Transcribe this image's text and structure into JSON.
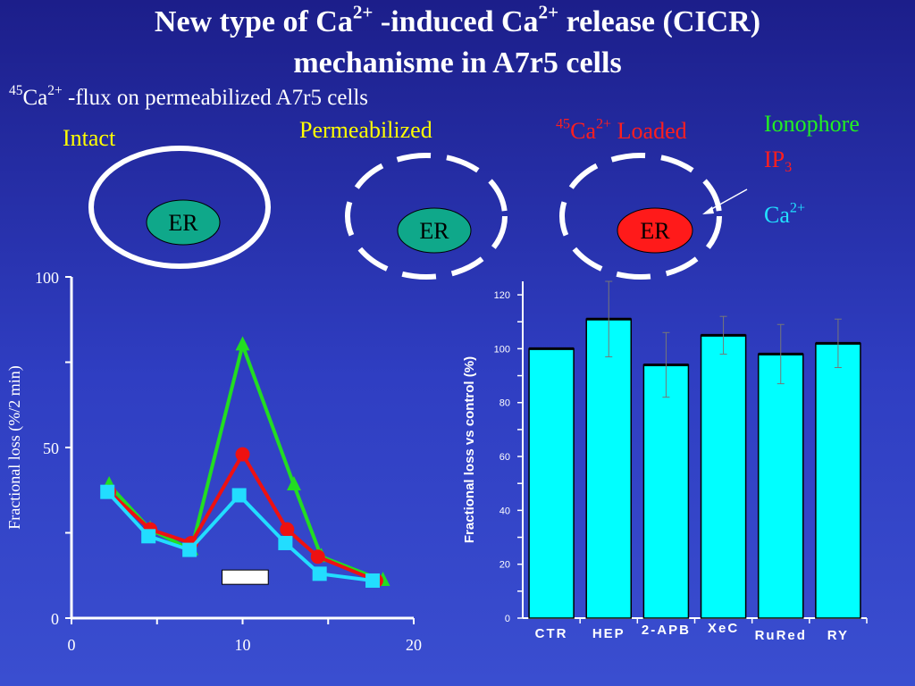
{
  "title": {
    "part1": "New type of Ca",
    "sup1": "2+",
    "part2": " -induced Ca",
    "sup2": "2+",
    "part3": "  release (CICR)",
    "line2": "mechanisme in A7r5 cells"
  },
  "subtitle": {
    "sup": "45",
    "ion": "Ca",
    "charge": "2+",
    "text": " -flux on permeabilized A7r5 cells"
  },
  "cells": {
    "intact_label": "Intact",
    "permeabilized_label": "Permeabilized",
    "loaded": {
      "sup": "45",
      "ion": "Ca",
      "charge": "2+",
      "text": " Loaded"
    },
    "er_label": "ER",
    "er_colors": {
      "normal": "#0fa88a",
      "loaded": "#ff1a1a"
    }
  },
  "stimuli": {
    "ionophore": "Ionophore",
    "ip3": {
      "base": "IP",
      "sub": "3"
    },
    "ca": {
      "base": "Ca",
      "sup": "2+"
    }
  },
  "chart_data": [
    {
      "type": "line",
      "ylabel": "Fractional loss (%/2 min)",
      "xlabel": "",
      "xlim": [
        0,
        20
      ],
      "ylim": [
        0,
        100
      ],
      "x_ticks": [
        "0",
        "10",
        "20"
      ],
      "y_ticks": [
        "0",
        "50",
        "100"
      ],
      "stimulus_bar": {
        "x_start": 8.8,
        "x_end": 11.5,
        "level": 12
      },
      "series": [
        {
          "color": "#22dd22",
          "marker": "triangle",
          "points": [
            [
              2.2,
              39
            ],
            [
              4.6,
              26
            ],
            [
              7,
              20
            ],
            [
              10,
              80
            ],
            [
              13,
              39
            ],
            [
              14.6,
              18
            ],
            [
              18.2,
              11
            ]
          ]
        },
        {
          "color": "#ee1111",
          "marker": "circle",
          "points": [
            [
              2.2,
              37
            ],
            [
              4.6,
              26
            ],
            [
              7,
              22
            ],
            [
              10,
              48
            ],
            [
              12.6,
              26
            ],
            [
              14.4,
              18
            ],
            [
              17.8,
              11
            ]
          ]
        },
        {
          "color": "#22ddff",
          "marker": "square",
          "points": [
            [
              2.1,
              37
            ],
            [
              4.5,
              24
            ],
            [
              6.9,
              20
            ],
            [
              9.8,
              36
            ],
            [
              12.5,
              22
            ],
            [
              14.5,
              13
            ],
            [
              17.6,
              11
            ]
          ]
        }
      ]
    },
    {
      "type": "bar",
      "ylabel": "Fractional loss vs control (%)",
      "xlabel": "",
      "ylim": [
        0,
        125
      ],
      "y_ticks": [
        "0",
        "20",
        "40",
        "60",
        "80",
        "100",
        "120"
      ],
      "categories": [
        "CTR",
        "HEP",
        "2-APB",
        "XeC",
        "RuRed",
        "RY"
      ],
      "values": [
        100,
        111,
        94,
        105,
        98,
        102
      ],
      "errors": [
        0,
        14,
        12,
        7,
        11,
        9
      ],
      "bar_color": "#00ffff"
    }
  ]
}
